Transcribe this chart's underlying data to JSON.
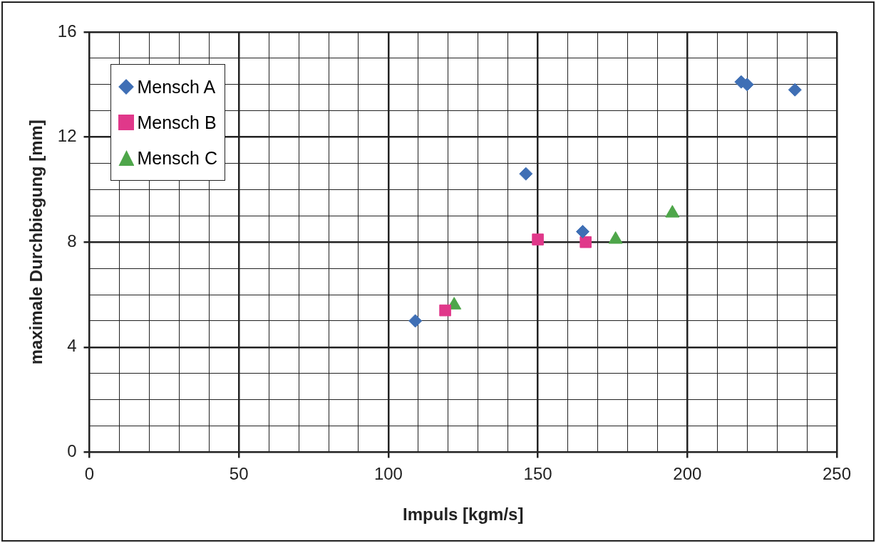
{
  "chart_data": {
    "type": "scatter",
    "xlabel": "Impuls [kgm/s]",
    "ylabel": "maximale Durchbiegung [mm]",
    "xlim": [
      0,
      250
    ],
    "ylim": [
      0,
      16
    ],
    "xticks": [
      0,
      {
        "value": 10,
        "label": null
      },
      {
        "value": 20,
        "label": null
      },
      {
        "value": 30,
        "label": null
      },
      {
        "value": 40,
        "label": null
      },
      50,
      {
        "value": 60,
        "label": null
      },
      {
        "value": 70,
        "label": null
      },
      {
        "value": 80,
        "label": null
      },
      {
        "value": 90,
        "label": null
      },
      100,
      {
        "value": 110,
        "label": null
      },
      {
        "value": 120,
        "label": null
      },
      {
        "value": 130,
        "label": null
      },
      {
        "value": 140,
        "label": null
      },
      150,
      {
        "value": 160,
        "label": null
      },
      {
        "value": 170,
        "label": null
      },
      {
        "value": 180,
        "label": null
      },
      {
        "value": 190,
        "label": null
      },
      200,
      {
        "value": 210,
        "label": null
      },
      {
        "value": 220,
        "label": null
      },
      {
        "value": 230,
        "label": null
      },
      {
        "value": 240,
        "label": null
      },
      250
    ],
    "yticks": [
      0,
      {
        "value": 1,
        "label": null
      },
      {
        "value": 2,
        "label": null
      },
      {
        "value": 3,
        "label": null
      },
      4,
      {
        "value": 5,
        "label": null
      },
      {
        "value": 6,
        "label": null
      },
      {
        "value": 7,
        "label": null
      },
      8,
      {
        "value": 9,
        "label": null
      },
      {
        "value": 10,
        "label": null
      },
      {
        "value": 11,
        "label": null
      },
      12,
      {
        "value": 13,
        "label": null
      },
      {
        "value": 14,
        "label": null
      },
      {
        "value": 15,
        "label": null
      },
      16
    ],
    "grid": true,
    "legend": "top left",
    "series": [
      {
        "name": "Mensch A",
        "color": "#3f6fb5",
        "marker": "diamond",
        "x": [
          109,
          146,
          165,
          218,
          220,
          236
        ],
        "values": [
          5.0,
          10.6,
          8.4,
          14.1,
          14.0,
          13.8
        ]
      },
      {
        "name": "Mensch B",
        "color": "#e0388a",
        "marker": "square",
        "x": [
          119,
          150,
          166
        ],
        "values": [
          5.4,
          8.1,
          8.0
        ]
      },
      {
        "name": "Mensch C",
        "color": "#4ea64a",
        "marker": "triangle",
        "x": [
          122,
          176,
          195
        ],
        "values": [
          5.6,
          8.1,
          9.1
        ]
      }
    ]
  }
}
